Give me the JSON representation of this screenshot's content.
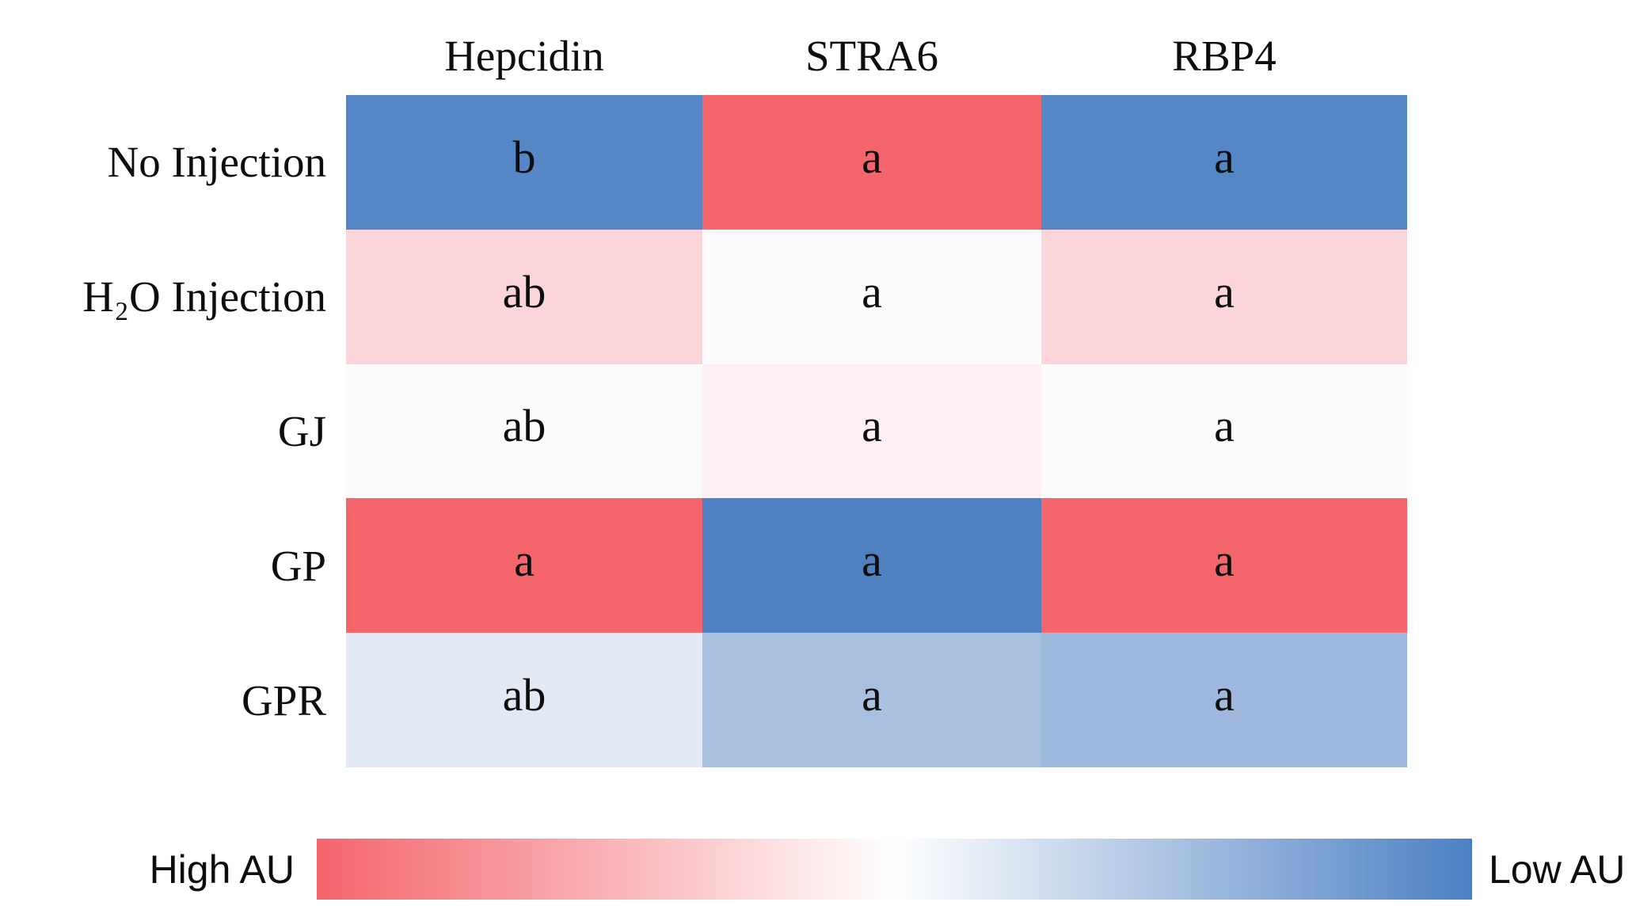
{
  "figure": {
    "columns": [
      "Hepcidin",
      "STRA6",
      "RBP4"
    ],
    "rows": [
      {
        "label": "No Injection",
        "cells": [
          {
            "letter": "b",
            "color": "#5586c5"
          },
          {
            "letter": "a",
            "color": "#f4656c"
          },
          {
            "letter": "a",
            "color": "#5586c5"
          }
        ]
      },
      {
        "label": "H₂O Injection",
        "cells": [
          {
            "letter": "ab",
            "color": "#fbd5da"
          },
          {
            "letter": "a",
            "color": "#fbfbfe"
          },
          {
            "letter": "a",
            "color": "#fbd5da"
          }
        ]
      },
      {
        "label": "GJ",
        "cells": [
          {
            "letter": "ab",
            "color": "#fbfbfe"
          },
          {
            "letter": "a",
            "color": "#fdeff3"
          },
          {
            "letter": "a",
            "color": "#fbfbfe"
          }
        ]
      },
      {
        "label": "GP",
        "cells": [
          {
            "letter": "a",
            "color": "#f4656c"
          },
          {
            "letter": "a",
            "color": "#4f80c0"
          },
          {
            "letter": "a",
            "color": "#f4656c"
          }
        ]
      },
      {
        "label": "GPR",
        "cells": [
          {
            "letter": "ab",
            "color": "#e2e8f4"
          },
          {
            "letter": "a",
            "color": "#a9c0e1"
          },
          {
            "letter": "a",
            "color": "#9fb9de"
          }
        ]
      }
    ],
    "legend": {
      "left_label": "High AU",
      "right_label": "Low AU",
      "gradient_start": "#f4656c",
      "gradient_mid": "#ffffff",
      "gradient_end": "#4c80c3"
    }
  },
  "chart_data": {
    "type": "heatmap",
    "title": "",
    "columns": [
      "Hepcidin",
      "STRA6",
      "RBP4"
    ],
    "rows": [
      "No Injection",
      "H₂O Injection",
      "GJ",
      "GP",
      "GPR"
    ],
    "cell_significance_letters": [
      [
        "b",
        "a",
        "a"
      ],
      [
        "ab",
        "a",
        "a"
      ],
      [
        "ab",
        "a",
        "a"
      ],
      [
        "a",
        "a",
        "a"
      ],
      [
        "ab",
        "a",
        "a"
      ]
    ],
    "cell_colors": [
      [
        "#5586c5",
        "#f4656c",
        "#5586c5"
      ],
      [
        "#fbd5da",
        "#fbfbfe",
        "#fbd5da"
      ],
      [
        "#fbfbfe",
        "#fdeff3",
        "#fbfbfe"
      ],
      [
        "#f4656c",
        "#4f80c0",
        "#f4656c"
      ],
      [
        "#e2e8f4",
        "#a9c0e1",
        "#9fb9de"
      ]
    ],
    "color_scale": {
      "high_label": "High AU",
      "low_label": "Low AU",
      "high_color": "#f4656c",
      "midpoint_color": "#ffffff",
      "low_color": "#4c80c3"
    },
    "value_encoding": "red = High AU, blue = Low AU (relative expression, arbitrary units)",
    "legend_position": "bottom",
    "grid": false
  }
}
